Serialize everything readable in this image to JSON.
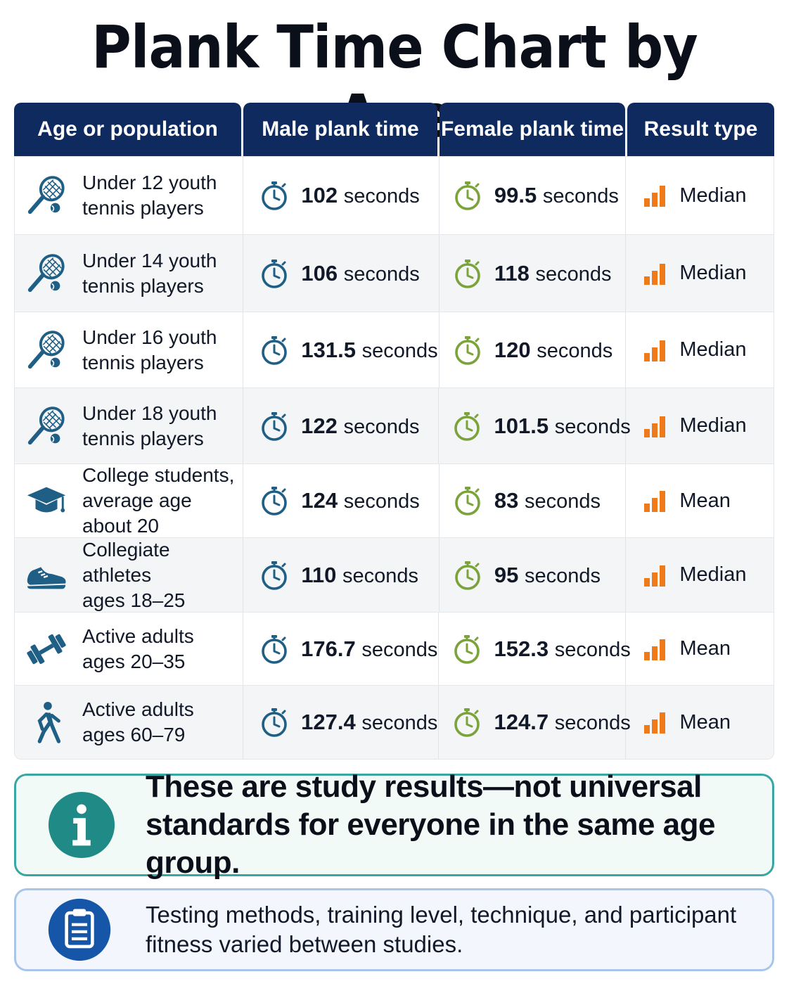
{
  "title": "Plank Time Chart by Age",
  "colors": {
    "header_bg": "#0f2a5e",
    "male_icon": "#1f5f85",
    "female_icon": "#7aa33a",
    "bars_icon": "#ef7a1a",
    "note_teal": "#1f8a86",
    "note_blue": "#1556a8"
  },
  "chart_data": {
    "type": "table",
    "columns": [
      "Age or population",
      "Male plank time",
      "Female plank time",
      "Result type"
    ],
    "rows": [
      {
        "icon": "tennis-racket-icon",
        "population": "Under 12 youth\ntennis players",
        "male_value": "102",
        "female_value": "99.5",
        "unit": "seconds",
        "result_type": "Median"
      },
      {
        "icon": "tennis-racket-icon",
        "population": "Under 14 youth\ntennis players",
        "male_value": "106",
        "female_value": "118",
        "unit": "seconds",
        "result_type": "Median"
      },
      {
        "icon": "tennis-racket-icon",
        "population": "Under 16 youth\ntennis players",
        "male_value": "131.5",
        "female_value": "120",
        "unit": "seconds",
        "result_type": "Median"
      },
      {
        "icon": "tennis-racket-icon",
        "population": "Under 18 youth\ntennis players",
        "male_value": "122",
        "female_value": "101.5",
        "unit": "seconds",
        "result_type": "Median"
      },
      {
        "icon": "graduation-cap-icon",
        "population": "College students,\naverage age about 20",
        "male_value": "124",
        "female_value": "83",
        "unit": "seconds",
        "result_type": "Mean"
      },
      {
        "icon": "sneaker-icon",
        "population": "Collegiate athletes\nages 18–25",
        "male_value": "110",
        "female_value": "95",
        "unit": "seconds",
        "result_type": "Median"
      },
      {
        "icon": "dumbbell-icon",
        "population": "Active adults\nages 20–35",
        "male_value": "176.7",
        "female_value": "152.3",
        "unit": "seconds",
        "result_type": "Mean"
      },
      {
        "icon": "walking-person-icon",
        "population": "Active adults\nages 60–79",
        "male_value": "127.4",
        "female_value": "124.7",
        "unit": "seconds",
        "result_type": "Mean"
      }
    ]
  },
  "notes": {
    "primary": "These are study results—not universal standards for everyone in the same age group.",
    "primary_icon": "info-icon",
    "secondary": "Testing methods, training level, technique, and participant fitness varied between studies.",
    "secondary_icon": "clipboard-icon"
  }
}
